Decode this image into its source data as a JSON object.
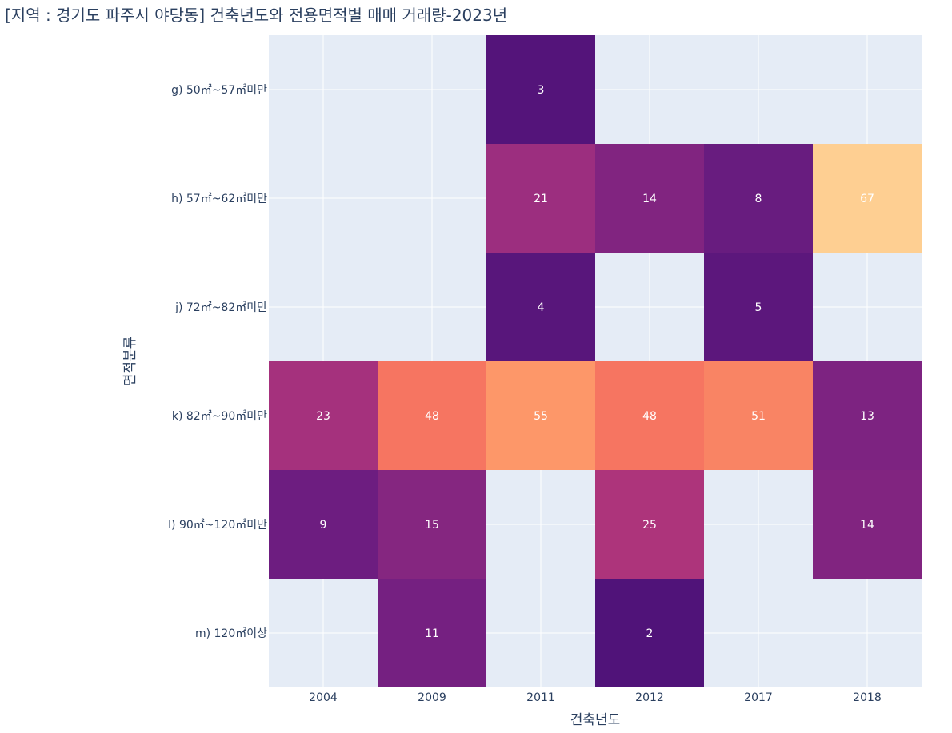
{
  "chart_data": {
    "type": "heatmap",
    "title": "[지역 : 경기도 파주시 야당동] 건축년도와 전용면적별 매매 거래량-2023년",
    "xlabel": "건축년도",
    "ylabel": "면적분류",
    "x": [
      "2004",
      "2009",
      "2011",
      "2012",
      "2017",
      "2018"
    ],
    "y": [
      "g) 50㎡~57㎡미만",
      "h) 57㎡~62㎡미만",
      "j) 72㎡~82㎡미만",
      "k) 82㎡~90㎡미만",
      "l) 90㎡~120㎡미만",
      "m) 120㎡이상"
    ],
    "z": [
      [
        null,
        null,
        3,
        null,
        null,
        null
      ],
      [
        null,
        null,
        21,
        14,
        8,
        67
      ],
      [
        null,
        null,
        4,
        null,
        5,
        null
      ],
      [
        23,
        48,
        55,
        48,
        51,
        13
      ],
      [
        9,
        15,
        null,
        25,
        null,
        14
      ],
      [
        null,
        11,
        null,
        2,
        null,
        null
      ]
    ],
    "colorscale": "magma",
    "zmin": 2,
    "zmax": 67,
    "plot_background": "#e5ecf6",
    "grid": true
  }
}
